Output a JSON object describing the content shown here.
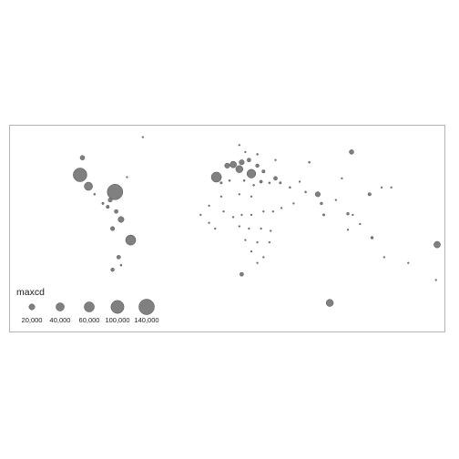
{
  "legend": {
    "title": "maxcd",
    "entries": [
      {
        "label": "20,000",
        "value": 20000
      },
      {
        "label": "40,000",
        "value": 40000
      },
      {
        "label": "60,000",
        "value": 60000
      },
      {
        "label": "100,000",
        "value": 100000
      },
      {
        "label": "140,000",
        "value": 140000
      }
    ]
  },
  "colors": {
    "point_fill": "#808080",
    "point_stroke": "#4d4d4d",
    "frame": "#b3b3b3",
    "background": "#ffffff"
  },
  "points": [
    {
      "lon": -122,
      "lat": 47,
      "maxcd": 110000
    },
    {
      "lon": -93,
      "lat": 32,
      "maxcd": 140000
    },
    {
      "lon": -115,
      "lat": 37,
      "maxcd": 40000
    },
    {
      "lon": -120,
      "lat": 62,
      "maxcd": 12000
    },
    {
      "lon": -80,
      "lat": -10,
      "maxcd": 60000
    },
    {
      "lon": -88,
      "lat": 8,
      "maxcd": 20000
    },
    {
      "lon": -92,
      "lat": 15,
      "maxcd": 8000
    },
    {
      "lon": -97,
      "lat": 25,
      "maxcd": 10000
    },
    {
      "lon": -99,
      "lat": 19,
      "maxcd": 6000
    },
    {
      "lon": -103,
      "lat": 22,
      "maxcd": 3000
    },
    {
      "lon": -95,
      "lat": 0,
      "maxcd": 10000
    },
    {
      "lon": -90,
      "lat": -25,
      "maxcd": 8000
    },
    {
      "lon": -95,
      "lat": -36,
      "maxcd": 7000
    },
    {
      "lon": -88,
      "lat": -32,
      "maxcd": 2000
    },
    {
      "lon": -83,
      "lat": 45,
      "maxcd": 1500
    },
    {
      "lon": -110,
      "lat": 30,
      "maxcd": 2000
    },
    {
      "lon": -70,
      "lat": 80,
      "maxcd": 1500
    },
    {
      "lon": 10,
      "lat": 52,
      "maxcd": 30000
    },
    {
      "lon": 20,
      "lat": 48,
      "maxcd": 45000
    },
    {
      "lon": -9,
      "lat": 45,
      "maxcd": 60000
    },
    {
      "lon": 0,
      "lat": 55,
      "maxcd": 15000
    },
    {
      "lon": 5,
      "lat": 56,
      "maxcd": 25000
    },
    {
      "lon": 12,
      "lat": 58,
      "maxcd": 15000
    },
    {
      "lon": 18,
      "lat": 60,
      "maxcd": 8000
    },
    {
      "lon": 25,
      "lat": 55,
      "maxcd": 7000
    },
    {
      "lon": 30,
      "lat": 50,
      "maxcd": 6000
    },
    {
      "lon": 40,
      "lat": 44,
      "maxcd": 8000
    },
    {
      "lon": 44,
      "lat": 40,
      "maxcd": 3000
    },
    {
      "lon": 28,
      "lat": 41,
      "maxcd": 5000
    },
    {
      "lon": 35,
      "lat": 40,
      "maxcd": 2000
    },
    {
      "lon": -5,
      "lat": 40,
      "maxcd": 3000
    },
    {
      "lon": 2,
      "lat": 42,
      "maxcd": 2000
    },
    {
      "lon": 14,
      "lat": 42,
      "maxcd": 2000
    },
    {
      "lon": 22,
      "lat": 38,
      "maxcd": 2000
    },
    {
      "lon": 15,
      "lat": 67,
      "maxcd": 1500
    },
    {
      "lon": 25,
      "lat": 65,
      "maxcd": 2000
    },
    {
      "lon": 10,
      "lat": 73,
      "maxcd": 1500
    },
    {
      "lon": 40,
      "lat": 60,
      "maxcd": 1500
    },
    {
      "lon": 52,
      "lat": 36,
      "maxcd": 2000
    },
    {
      "lon": 60,
      "lat": 41,
      "maxcd": 1500
    },
    {
      "lon": 68,
      "lat": 58,
      "maxcd": 2000
    },
    {
      "lon": 65,
      "lat": 32,
      "maxcd": 2000
    },
    {
      "lon": 75,
      "lat": 30,
      "maxcd": 15000
    },
    {
      "lon": 78,
      "lat": 22,
      "maxcd": 4000
    },
    {
      "lon": 80,
      "lat": 12,
      "maxcd": 3000
    },
    {
      "lon": 90,
      "lat": 25,
      "maxcd": 1500
    },
    {
      "lon": 100,
      "lat": 13,
      "maxcd": 4000
    },
    {
      "lon": 104,
      "lat": 12,
      "maxcd": 1500
    },
    {
      "lon": 110,
      "lat": 4,
      "maxcd": 1500
    },
    {
      "lon": 118,
      "lat": 30,
      "maxcd": 6000
    },
    {
      "lon": 128,
      "lat": 36,
      "maxcd": 1500
    },
    {
      "lon": 136,
      "lat": 36,
      "maxcd": 1500
    },
    {
      "lon": 95,
      "lat": 44,
      "maxcd": 1500
    },
    {
      "lon": 103,
      "lat": 67,
      "maxcd": 12000
    },
    {
      "lon": 120,
      "lat": -8,
      "maxcd": 4000
    },
    {
      "lon": 100,
      "lat": -1,
      "maxcd": 1500
    },
    {
      "lon": 130,
      "lat": -25,
      "maxcd": 1500
    },
    {
      "lon": 150,
      "lat": -30,
      "maxcd": 1500
    },
    {
      "lon": 173,
      "lat": -45,
      "maxcd": 1500
    },
    {
      "lon": 174,
      "lat": -14,
      "maxcd": 25000
    },
    {
      "lon": 85,
      "lat": -65,
      "maxcd": 30000
    },
    {
      "lon": 12,
      "lat": -40,
      "maxcd": 8000
    },
    {
      "lon": 20,
      "lat": 28,
      "maxcd": 1500
    },
    {
      "lon": 10,
      "lat": 30,
      "maxcd": 1500
    },
    {
      "lon": -5,
      "lat": 28,
      "maxcd": 1500
    },
    {
      "lon": -15,
      "lat": 20,
      "maxcd": 1500
    },
    {
      "lon": -3,
      "lat": 15,
      "maxcd": 1500
    },
    {
      "lon": 5,
      "lat": 10,
      "maxcd": 1500
    },
    {
      "lon": 12,
      "lat": 12,
      "maxcd": 1500
    },
    {
      "lon": 20,
      "lat": 12,
      "maxcd": 1500
    },
    {
      "lon": 30,
      "lat": 15,
      "maxcd": 1500
    },
    {
      "lon": 38,
      "lat": 15,
      "maxcd": 1500
    },
    {
      "lon": 45,
      "lat": 18,
      "maxcd": 1500
    },
    {
      "lon": 55,
      "lat": 22,
      "maxcd": 1500
    },
    {
      "lon": 10,
      "lat": 2,
      "maxcd": 1500
    },
    {
      "lon": 18,
      "lat": 0,
      "maxcd": 1500
    },
    {
      "lon": 28,
      "lat": 0,
      "maxcd": 1500
    },
    {
      "lon": 36,
      "lat": -2,
      "maxcd": 1500
    },
    {
      "lon": 15,
      "lat": -10,
      "maxcd": 1500
    },
    {
      "lon": 25,
      "lat": -12,
      "maxcd": 1500
    },
    {
      "lon": 35,
      "lat": -12,
      "maxcd": 1500
    },
    {
      "lon": 20,
      "lat": -20,
      "maxcd": 1500
    },
    {
      "lon": 30,
      "lat": -25,
      "maxcd": 1500
    },
    {
      "lon": 25,
      "lat": -30,
      "maxcd": 1500
    },
    {
      "lon": -15,
      "lat": 5,
      "maxcd": 1500
    },
    {
      "lon": -10,
      "lat": 0,
      "maxcd": 1500
    },
    {
      "lon": -22,
      "lat": 12,
      "maxcd": 1500
    }
  ]
}
